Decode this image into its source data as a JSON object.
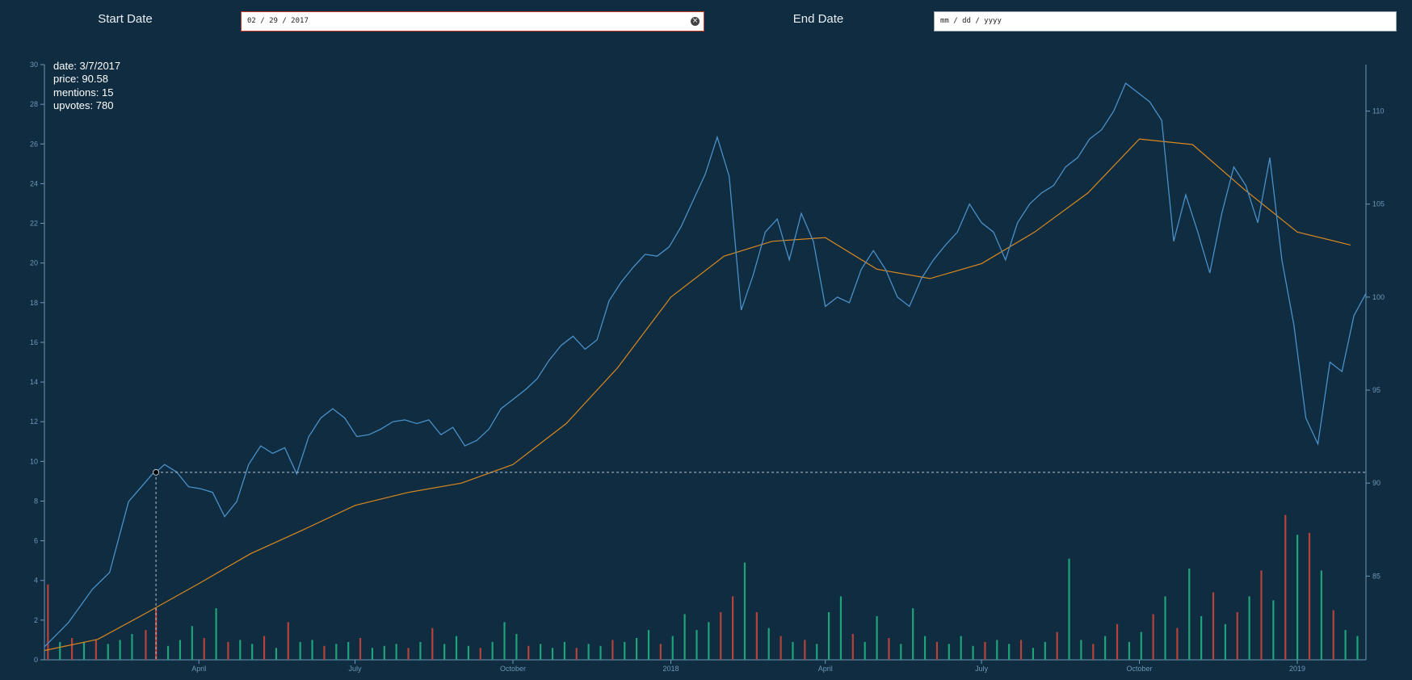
{
  "controls": {
    "start_label": "Start Date",
    "start_value": "02 / 29 / 2017",
    "end_label": "End Date",
    "end_value": "mm / dd / yyyy"
  },
  "tooltip": {
    "date": "date: 3/7/2017",
    "price": "price: 90.58",
    "mentions": "mentions: 15",
    "upvotes": "upvotes: 780"
  },
  "colors": {
    "background": "#0f2c40",
    "price_line": "#4a90c8",
    "moving_average": "#d9891f",
    "axis": "#6f97b8",
    "volume_up": "#1fa37a",
    "volume_down": "#b8413a",
    "crosshair": "#b9c6d1"
  },
  "chart_data": {
    "type": "line",
    "title": "",
    "xlabel": "",
    "x_ticks": [
      "April",
      "July",
      "October",
      "2018",
      "April",
      "July",
      "October",
      "2019"
    ],
    "y_left": {
      "label": "",
      "range": [
        0,
        30
      ],
      "ticks": [
        0,
        2,
        4,
        6,
        8,
        10,
        12,
        14,
        16,
        18,
        20,
        22,
        24,
        26,
        28,
        30
      ]
    },
    "y_right": {
      "label": "",
      "range": [
        80.5,
        112.5
      ],
      "ticks": [
        85,
        90,
        95,
        100,
        105,
        110
      ]
    },
    "crosshair": {
      "date": "3/7/2017",
      "price": 90.58
    },
    "series": [
      {
        "axis": "right",
        "points": [
          [
            "2017-01-01",
            81.2
          ],
          [
            "2017-01-15",
            82.5
          ],
          [
            "2017-01-29",
            84.3
          ],
          [
            "2017-02-08",
            85.2
          ],
          [
            "2017-02-19",
            89.0
          ],
          [
            "2017-03-05",
            90.5
          ],
          [
            "2017-03-07",
            90.58
          ],
          [
            "2017-03-12",
            91.0
          ],
          [
            "2017-03-19",
            90.6
          ],
          [
            "2017-03-26",
            89.8
          ],
          [
            "2017-04-02",
            89.7
          ],
          [
            "2017-04-09",
            89.5
          ],
          [
            "2017-04-16",
            88.2
          ],
          [
            "2017-04-23",
            89.0
          ],
          [
            "2017-04-30",
            91.0
          ],
          [
            "2017-05-07",
            92.0
          ],
          [
            "2017-05-14",
            91.6
          ],
          [
            "2017-05-21",
            91.9
          ],
          [
            "2017-05-28",
            90.5
          ],
          [
            "2017-06-04",
            92.5
          ],
          [
            "2017-06-11",
            93.5
          ],
          [
            "2017-06-18",
            94.0
          ],
          [
            "2017-06-25",
            93.5
          ],
          [
            "2017-07-02",
            92.5
          ],
          [
            "2017-07-09",
            92.6
          ],
          [
            "2017-07-16",
            92.9
          ],
          [
            "2017-07-23",
            93.3
          ],
          [
            "2017-07-30",
            93.4
          ],
          [
            "2017-08-06",
            93.2
          ],
          [
            "2017-08-13",
            93.4
          ],
          [
            "2017-08-20",
            92.6
          ],
          [
            "2017-08-27",
            93.0
          ],
          [
            "2017-09-03",
            92.0
          ],
          [
            "2017-09-10",
            92.3
          ],
          [
            "2017-09-17",
            92.9
          ],
          [
            "2017-09-24",
            94.0
          ],
          [
            "2017-10-01",
            94.5
          ],
          [
            "2017-10-08",
            95.0
          ],
          [
            "2017-10-15",
            95.6
          ],
          [
            "2017-10-22",
            96.6
          ],
          [
            "2017-10-29",
            97.4
          ],
          [
            "2017-11-05",
            97.9
          ],
          [
            "2017-11-12",
            97.2
          ],
          [
            "2017-11-19",
            97.7
          ],
          [
            "2017-11-26",
            99.8
          ],
          [
            "2017-12-03",
            100.8
          ],
          [
            "2017-12-10",
            101.6
          ],
          [
            "2017-12-17",
            102.3
          ],
          [
            "2017-12-24",
            102.2
          ],
          [
            "2017-12-31",
            102.7
          ],
          [
            "2018-01-07",
            103.8
          ],
          [
            "2018-01-14",
            105.2
          ],
          [
            "2018-01-21",
            106.6
          ],
          [
            "2018-01-28",
            108.6
          ],
          [
            "2018-02-04",
            106.5
          ],
          [
            "2018-02-11",
            99.3
          ],
          [
            "2018-02-18",
            101.2
          ],
          [
            "2018-02-25",
            103.5
          ],
          [
            "2018-03-04",
            104.2
          ],
          [
            "2018-03-11",
            102.0
          ],
          [
            "2018-03-18",
            104.5
          ],
          [
            "2018-03-25",
            103.0
          ],
          [
            "2018-04-01",
            99.5
          ],
          [
            "2018-04-08",
            100.0
          ],
          [
            "2018-04-15",
            99.7
          ],
          [
            "2018-04-22",
            101.5
          ],
          [
            "2018-04-29",
            102.5
          ],
          [
            "2018-05-06",
            101.5
          ],
          [
            "2018-05-13",
            100.0
          ],
          [
            "2018-05-20",
            99.5
          ],
          [
            "2018-05-27",
            101.0
          ],
          [
            "2018-06-03",
            102.0
          ],
          [
            "2018-06-10",
            102.8
          ],
          [
            "2018-06-17",
            103.5
          ],
          [
            "2018-06-24",
            105.0
          ],
          [
            "2018-07-01",
            104.0
          ],
          [
            "2018-07-08",
            103.5
          ],
          [
            "2018-07-15",
            102.0
          ],
          [
            "2018-07-22",
            104.0
          ],
          [
            "2018-07-29",
            105.0
          ],
          [
            "2018-08-05",
            105.6
          ],
          [
            "2018-08-12",
            106.0
          ],
          [
            "2018-08-19",
            107.0
          ],
          [
            "2018-08-26",
            107.5
          ],
          [
            "2018-09-02",
            108.5
          ],
          [
            "2018-09-09",
            109.0
          ],
          [
            "2018-09-16",
            110.0
          ],
          [
            "2018-09-23",
            111.5
          ],
          [
            "2018-09-30",
            111.0
          ],
          [
            "2018-10-07",
            110.5
          ],
          [
            "2018-10-14",
            109.5
          ],
          [
            "2018-10-21",
            103.0
          ],
          [
            "2018-10-28",
            105.5
          ],
          [
            "2018-11-04",
            103.5
          ],
          [
            "2018-11-11",
            101.3
          ],
          [
            "2018-11-18",
            104.5
          ],
          [
            "2018-11-25",
            107.0
          ],
          [
            "2018-12-02",
            106.0
          ],
          [
            "2018-12-09",
            104.0
          ],
          [
            "2018-12-16",
            107.5
          ],
          [
            "2018-12-23",
            102.0
          ],
          [
            "2018-12-30",
            98.5
          ],
          [
            "2019-01-06",
            93.5
          ],
          [
            "2019-01-13",
            92.1
          ],
          [
            "2019-01-20",
            96.5
          ],
          [
            "2019-01-27",
            96.0
          ],
          [
            "2019-02-03",
            99.0
          ],
          [
            "2019-02-10",
            100.2
          ]
        ]
      },
      {
        "axis": "right",
        "points": [
          [
            "2017-01-01",
            81.0
          ],
          [
            "2017-02-01",
            81.6
          ],
          [
            "2017-03-01",
            83.0
          ],
          [
            "2017-04-01",
            84.6
          ],
          [
            "2017-05-01",
            86.2
          ],
          [
            "2017-06-01",
            87.5
          ],
          [
            "2017-07-01",
            88.8
          ],
          [
            "2017-08-01",
            89.5
          ],
          [
            "2017-09-01",
            90.0
          ],
          [
            "2017-10-01",
            91.0
          ],
          [
            "2017-11-01",
            93.2
          ],
          [
            "2017-12-01",
            96.2
          ],
          [
            "2018-01-01",
            100.0
          ],
          [
            "2018-02-01",
            102.2
          ],
          [
            "2018-03-01",
            103.0
          ],
          [
            "2018-04-01",
            103.2
          ],
          [
            "2018-05-01",
            101.5
          ],
          [
            "2018-06-01",
            101.0
          ],
          [
            "2018-07-01",
            101.8
          ],
          [
            "2018-08-01",
            103.5
          ],
          [
            "2018-09-01",
            105.6
          ],
          [
            "2018-10-01",
            108.5
          ],
          [
            "2018-11-01",
            108.2
          ],
          [
            "2018-12-01",
            105.8
          ],
          [
            "2019-01-01",
            103.5
          ],
          [
            "2019-02-01",
            102.8
          ]
        ]
      }
    ],
    "volume": {
      "axis": "left",
      "bars": [
        [
          "2017-01-03",
          3.8,
          "down"
        ],
        [
          "2017-01-10",
          0.9,
          "up"
        ],
        [
          "2017-01-17",
          1.1,
          "down"
        ],
        [
          "2017-01-24",
          0.9,
          "up"
        ],
        [
          "2017-01-31",
          1.0,
          "down"
        ],
        [
          "2017-02-07",
          0.8,
          "up"
        ],
        [
          "2017-02-14",
          1.0,
          "up"
        ],
        [
          "2017-02-21",
          1.3,
          "up"
        ],
        [
          "2017-03-01",
          1.5,
          "down"
        ],
        [
          "2017-03-07",
          2.6,
          "down"
        ],
        [
          "2017-03-14",
          0.7,
          "up"
        ],
        [
          "2017-03-21",
          1.0,
          "up"
        ],
        [
          "2017-03-28",
          1.7,
          "up"
        ],
        [
          "2017-04-04",
          1.1,
          "down"
        ],
        [
          "2017-04-11",
          2.6,
          "up"
        ],
        [
          "2017-04-18",
          0.9,
          "down"
        ],
        [
          "2017-04-25",
          1.0,
          "up"
        ],
        [
          "2017-05-02",
          0.8,
          "up"
        ],
        [
          "2017-05-09",
          1.2,
          "down"
        ],
        [
          "2017-05-16",
          0.6,
          "up"
        ],
        [
          "2017-05-23",
          1.9,
          "down"
        ],
        [
          "2017-05-30",
          0.9,
          "up"
        ],
        [
          "2017-06-06",
          1.0,
          "up"
        ],
        [
          "2017-06-13",
          0.7,
          "down"
        ],
        [
          "2017-06-20",
          0.8,
          "up"
        ],
        [
          "2017-06-27",
          0.9,
          "up"
        ],
        [
          "2017-07-04",
          1.1,
          "down"
        ],
        [
          "2017-07-11",
          0.6,
          "up"
        ],
        [
          "2017-07-18",
          0.7,
          "up"
        ],
        [
          "2017-07-25",
          0.8,
          "up"
        ],
        [
          "2017-08-01",
          0.6,
          "down"
        ],
        [
          "2017-08-08",
          0.9,
          "up"
        ],
        [
          "2017-08-15",
          1.6,
          "down"
        ],
        [
          "2017-08-22",
          0.8,
          "up"
        ],
        [
          "2017-08-29",
          1.2,
          "up"
        ],
        [
          "2017-09-05",
          0.7,
          "up"
        ],
        [
          "2017-09-12",
          0.6,
          "down"
        ],
        [
          "2017-09-19",
          0.9,
          "up"
        ],
        [
          "2017-09-26",
          1.9,
          "up"
        ],
        [
          "2017-10-03",
          1.3,
          "up"
        ],
        [
          "2017-10-10",
          0.7,
          "down"
        ],
        [
          "2017-10-17",
          0.8,
          "up"
        ],
        [
          "2017-10-24",
          0.6,
          "up"
        ],
        [
          "2017-10-31",
          0.9,
          "up"
        ],
        [
          "2017-11-07",
          0.6,
          "down"
        ],
        [
          "2017-11-14",
          0.8,
          "up"
        ],
        [
          "2017-11-21",
          0.7,
          "up"
        ],
        [
          "2017-11-28",
          1.0,
          "down"
        ],
        [
          "2017-12-05",
          0.9,
          "up"
        ],
        [
          "2017-12-12",
          1.1,
          "up"
        ],
        [
          "2017-12-19",
          1.5,
          "up"
        ],
        [
          "2017-12-26",
          0.8,
          "down"
        ],
        [
          "2018-01-02",
          1.2,
          "up"
        ],
        [
          "2018-01-09",
          2.3,
          "up"
        ],
        [
          "2018-01-16",
          1.5,
          "up"
        ],
        [
          "2018-01-23",
          1.9,
          "up"
        ],
        [
          "2018-01-30",
          2.4,
          "down"
        ],
        [
          "2018-02-06",
          3.2,
          "down"
        ],
        [
          "2018-02-13",
          4.9,
          "up"
        ],
        [
          "2018-02-20",
          2.4,
          "down"
        ],
        [
          "2018-02-27",
          1.6,
          "up"
        ],
        [
          "2018-03-06",
          1.2,
          "down"
        ],
        [
          "2018-03-13",
          0.9,
          "up"
        ],
        [
          "2018-03-20",
          1.0,
          "down"
        ],
        [
          "2018-03-27",
          0.8,
          "up"
        ],
        [
          "2018-04-03",
          2.4,
          "up"
        ],
        [
          "2018-04-10",
          3.2,
          "up"
        ],
        [
          "2018-04-17",
          1.3,
          "down"
        ],
        [
          "2018-04-24",
          0.9,
          "up"
        ],
        [
          "2018-05-01",
          2.2,
          "up"
        ],
        [
          "2018-05-08",
          1.1,
          "down"
        ],
        [
          "2018-05-15",
          0.8,
          "up"
        ],
        [
          "2018-05-22",
          2.6,
          "up"
        ],
        [
          "2018-05-29",
          1.2,
          "up"
        ],
        [
          "2018-06-05",
          0.9,
          "down"
        ],
        [
          "2018-06-12",
          0.8,
          "up"
        ],
        [
          "2018-06-19",
          1.2,
          "up"
        ],
        [
          "2018-06-26",
          0.7,
          "up"
        ],
        [
          "2018-07-03",
          0.9,
          "down"
        ],
        [
          "2018-07-10",
          1.0,
          "up"
        ],
        [
          "2018-07-17",
          0.8,
          "up"
        ],
        [
          "2018-07-24",
          1.0,
          "down"
        ],
        [
          "2018-07-31",
          0.6,
          "up"
        ],
        [
          "2018-08-07",
          0.9,
          "up"
        ],
        [
          "2018-08-14",
          1.4,
          "down"
        ],
        [
          "2018-08-21",
          5.1,
          "up"
        ],
        [
          "2018-08-28",
          1.0,
          "up"
        ],
        [
          "2018-09-04",
          0.8,
          "down"
        ],
        [
          "2018-09-11",
          1.2,
          "up"
        ],
        [
          "2018-09-18",
          1.8,
          "down"
        ],
        [
          "2018-09-25",
          0.9,
          "up"
        ],
        [
          "2018-10-02",
          1.4,
          "up"
        ],
        [
          "2018-10-09",
          2.3,
          "down"
        ],
        [
          "2018-10-16",
          3.2,
          "up"
        ],
        [
          "2018-10-23",
          1.6,
          "down"
        ],
        [
          "2018-10-30",
          4.6,
          "up"
        ],
        [
          "2018-11-06",
          2.2,
          "up"
        ],
        [
          "2018-11-13",
          3.4,
          "down"
        ],
        [
          "2018-11-20",
          1.8,
          "up"
        ],
        [
          "2018-11-27",
          2.4,
          "down"
        ],
        [
          "2018-12-04",
          3.2,
          "up"
        ],
        [
          "2018-12-11",
          4.5,
          "down"
        ],
        [
          "2018-12-18",
          3.0,
          "up"
        ],
        [
          "2018-12-25",
          7.3,
          "down"
        ],
        [
          "2019-01-01",
          6.3,
          "up"
        ],
        [
          "2019-01-08",
          6.4,
          "down"
        ],
        [
          "2019-01-15",
          4.5,
          "up"
        ],
        [
          "2019-01-22",
          2.5,
          "down"
        ],
        [
          "2019-01-29",
          1.5,
          "up"
        ],
        [
          "2019-02-05",
          1.2,
          "up"
        ]
      ]
    }
  }
}
